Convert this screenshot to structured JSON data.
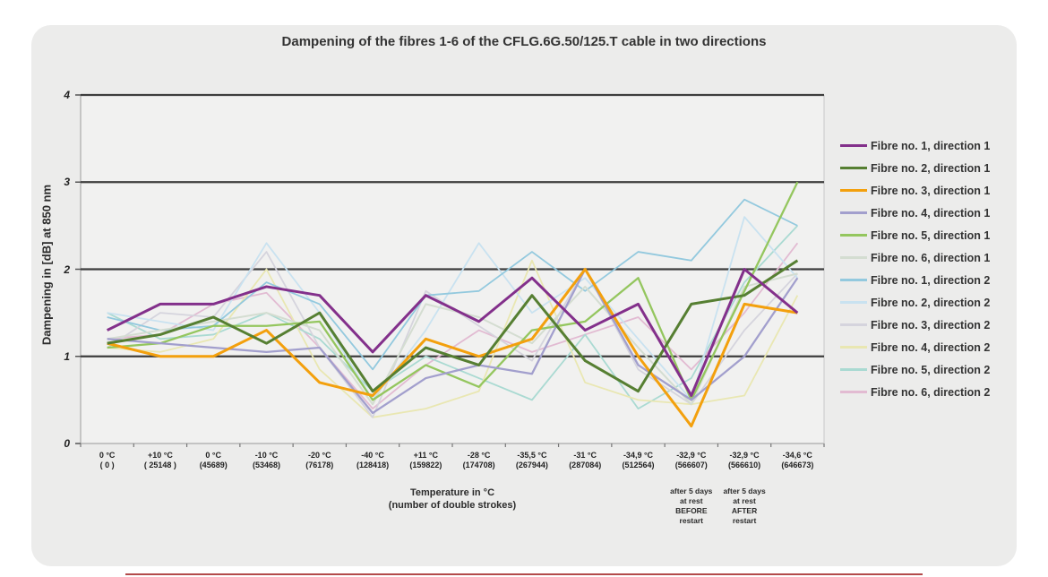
{
  "page": {
    "bottom_rule_color": "#b34a4a",
    "card_color": "#ececeb"
  },
  "chart_data": {
    "type": "line",
    "title": "Dampening of the fibres 1-6 of the CFLG.6G.50/125.T cable in two directions",
    "xlabel": "Temperature in °C",
    "xlabel2": "(number of double strokes)",
    "ylabel": "Dampening in [dB] at 850 nm",
    "ylim": [
      0,
      4
    ],
    "y_ticks": [
      0,
      1,
      2,
      3,
      4
    ],
    "grid": "horizontal",
    "legend_position": "right",
    "categories": [
      {
        "temp": "0 °C",
        "strokes": "( 0 )"
      },
      {
        "temp": "+10 °C",
        "strokes": "( 25148 )"
      },
      {
        "temp": "0 °C",
        "strokes": "(45689)"
      },
      {
        "temp": "-10 °C",
        "strokes": "(53468)"
      },
      {
        "temp": "-20 °C",
        "strokes": "(76178)"
      },
      {
        "temp": "-40 °C",
        "strokes": "(128418)"
      },
      {
        "temp": "+11 °C",
        "strokes": "(159822)"
      },
      {
        "temp": "-28 °C",
        "strokes": "(174708)"
      },
      {
        "temp": "-35,5 °C",
        "strokes": "(267944)"
      },
      {
        "temp": "-31 °C",
        "strokes": "(287084)"
      },
      {
        "temp": "-34,9 °C",
        "strokes": "(512564)"
      },
      {
        "temp": "-32,9 °C",
        "strokes": "(566607)"
      },
      {
        "temp": "-32,9 °C",
        "strokes": "(566610)"
      },
      {
        "temp": "-34,6 °C",
        "strokes": "(646673)"
      }
    ],
    "annotations": [
      {
        "category_index": 11,
        "lines": [
          "after 5 days",
          "at rest",
          "BEFORE",
          "restart"
        ]
      },
      {
        "category_index": 12,
        "lines": [
          "after 5 days",
          "at rest",
          "AFTER",
          "restart"
        ]
      }
    ],
    "series": [
      {
        "name": "Fibre no. 1, direction 1",
        "color": "#83308b",
        "values": [
          1.3,
          1.6,
          1.6,
          1.8,
          1.7,
          1.05,
          1.7,
          1.4,
          1.9,
          1.3,
          1.6,
          0.55,
          2.0,
          1.5
        ]
      },
      {
        "name": "Fibre no. 2, direction 1",
        "color": "#567f32",
        "values": [
          1.15,
          1.25,
          1.45,
          1.15,
          1.5,
          0.6,
          1.1,
          0.9,
          1.7,
          0.95,
          0.6,
          1.6,
          1.7,
          2.1
        ]
      },
      {
        "name": "Fibre no. 3, direction 1",
        "color": "#f3a00d",
        "values": [
          1.15,
          1.0,
          1.0,
          1.3,
          0.7,
          0.55,
          1.2,
          1.0,
          1.2,
          2.0,
          1.0,
          0.2,
          1.6,
          1.5
        ]
      },
      {
        "name": "Fibre no. 4, direction 1",
        "color": "#a29fcd",
        "values": [
          1.2,
          1.15,
          1.1,
          1.05,
          1.1,
          0.35,
          0.75,
          0.9,
          0.8,
          2.0,
          0.9,
          0.5,
          1.0,
          1.9
        ]
      },
      {
        "name": "Fibre no. 5, direction 1",
        "color": "#94c65e",
        "values": [
          1.1,
          1.15,
          1.35,
          1.35,
          1.4,
          0.5,
          0.9,
          0.65,
          1.3,
          1.4,
          1.9,
          0.5,
          1.75,
          3.0
        ]
      },
      {
        "name": "Fibre no. 6, direction 1",
        "color": "#d4ddd1",
        "values": [
          1.2,
          1.3,
          1.4,
          1.5,
          1.3,
          0.45,
          1.6,
          1.45,
          1.15,
          1.8,
          1.1,
          0.45,
          1.8,
          1.95
        ]
      },
      {
        "name": "Fibre no. 1, direction 2",
        "color": "#93c9de",
        "values": [
          1.45,
          1.3,
          1.35,
          1.85,
          1.6,
          0.85,
          1.7,
          1.75,
          2.2,
          1.75,
          2.2,
          2.1,
          2.8,
          2.5
        ]
      },
      {
        "name": "Fibre no. 2, direction 2",
        "color": "#c9e2f0",
        "values": [
          1.5,
          1.4,
          1.3,
          2.3,
          1.5,
          0.5,
          1.3,
          2.3,
          1.5,
          1.9,
          1.2,
          0.5,
          2.6,
          1.9
        ]
      },
      {
        "name": "Fibre no. 3, direction 2",
        "color": "#d5d4dd",
        "values": [
          1.1,
          1.5,
          1.45,
          2.2,
          1.1,
          0.3,
          1.75,
          1.35,
          0.95,
          2.0,
          0.85,
          0.45,
          1.3,
          1.95
        ]
      },
      {
        "name": "Fibre no. 4, direction 2",
        "color": "#e9e7b2",
        "values": [
          1.1,
          1.05,
          1.2,
          2.0,
          0.85,
          0.3,
          0.4,
          0.6,
          2.1,
          0.7,
          0.5,
          0.45,
          0.55,
          1.7
        ]
      },
      {
        "name": "Fibre no. 5, direction 2",
        "color": "#aadad2",
        "values": [
          1.5,
          1.2,
          1.25,
          1.5,
          1.2,
          0.6,
          1.0,
          0.75,
          0.5,
          1.25,
          0.4,
          0.75,
          1.85,
          2.5
        ]
      },
      {
        "name": "Fibre no. 6, direction 2",
        "color": "#e2bbd2",
        "values": [
          1.2,
          1.25,
          1.6,
          1.73,
          1.1,
          0.4,
          0.9,
          1.3,
          1.05,
          1.25,
          1.45,
          0.85,
          1.5,
          2.3
        ]
      }
    ]
  }
}
